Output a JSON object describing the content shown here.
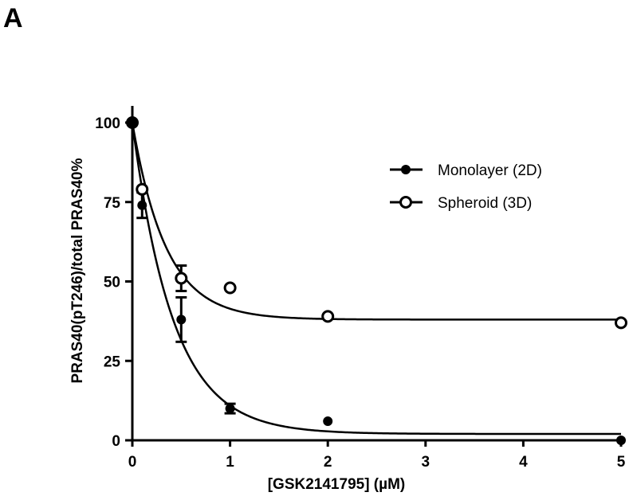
{
  "panel_label": "A",
  "chart_data": {
    "type": "scatter",
    "xlabel": "[GSK2141795] (µM)",
    "ylabel": "PRAS40(pT246)/total PRAS40%",
    "xlim": [
      0,
      5
    ],
    "ylim": [
      0,
      100
    ],
    "x_ticks": [
      "0",
      "1",
      "2",
      "3",
      "4",
      "5"
    ],
    "y_ticks": [
      "0",
      "25",
      "50",
      "75",
      "100"
    ],
    "grid": false,
    "legend_position": "top-right",
    "series": [
      {
        "name": "Monolayer (2D)",
        "marker": "filled-circle",
        "color": "#000000",
        "x": [
          0,
          0.1,
          0.5,
          1,
          2,
          5
        ],
        "y": [
          100,
          74,
          38,
          10,
          6,
          0
        ],
        "err": [
          0,
          4,
          7,
          1.5,
          0,
          0
        ],
        "fit": {
          "top": 100,
          "plateau": 2,
          "k": 2.4
        }
      },
      {
        "name": "Spheroid (3D)",
        "marker": "open-circle",
        "color": "#000000",
        "x": [
          0,
          0.1,
          0.5,
          1,
          2,
          5
        ],
        "y": [
          100,
          79,
          51,
          48,
          39,
          37
        ],
        "err": [
          0,
          0,
          4,
          0,
          0,
          0
        ],
        "fit": {
          "top": 100,
          "plateau": 38,
          "k": 2.9
        }
      }
    ]
  }
}
